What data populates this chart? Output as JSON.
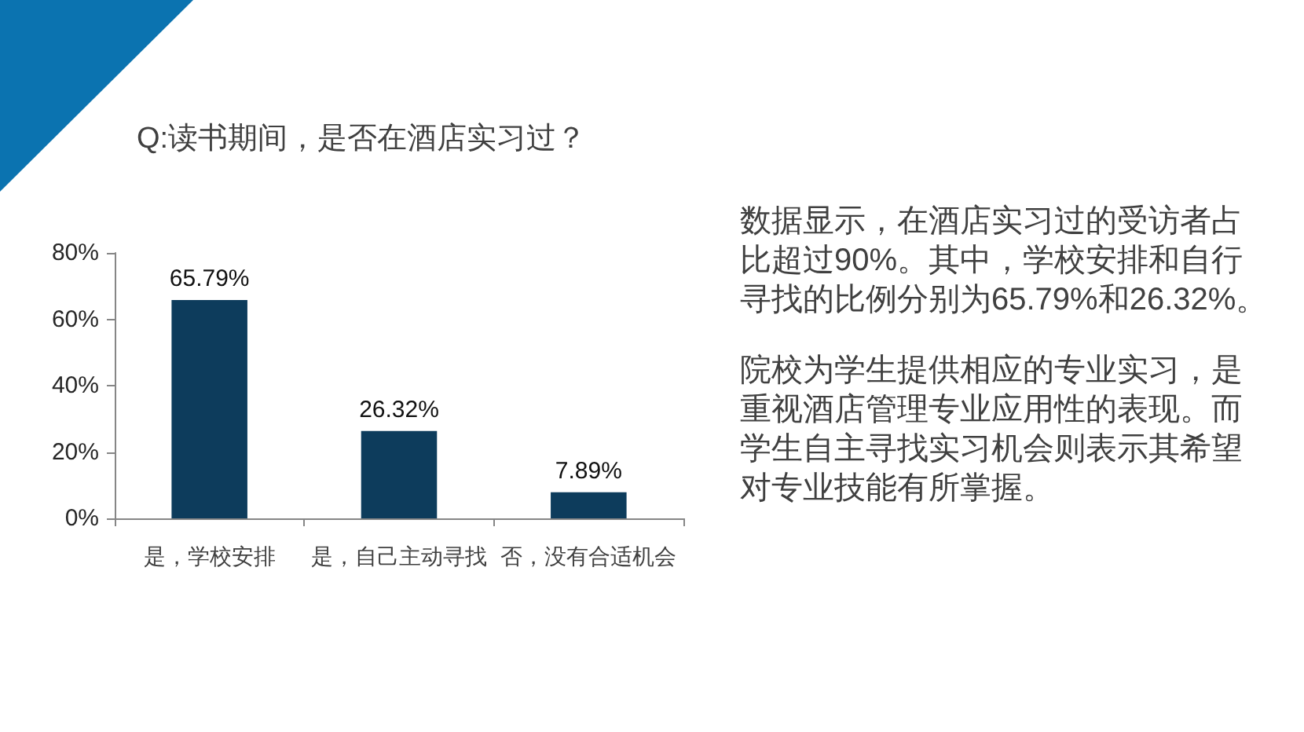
{
  "chart_data": {
    "type": "bar",
    "title": "Q:读书期间，是否在酒店实习过？",
    "categories": [
      "是，学校安排",
      "是，自己主动寻找",
      "否，没有合适机会"
    ],
    "values": [
      65.79,
      26.32,
      7.89
    ],
    "value_labels": [
      "65.79%",
      "26.32%",
      "7.89%"
    ],
    "color": "#0d3c5c",
    "ylim": [
      0,
      80
    ],
    "yticks": [
      {
        "value": 0,
        "label": "0%"
      },
      {
        "value": 20,
        "label": "20%"
      },
      {
        "value": 40,
        "label": "40%"
      },
      {
        "value": 60,
        "label": "60%"
      },
      {
        "value": 80,
        "label": "80%"
      }
    ],
    "grid": false,
    "annotations": [
      "数据显示，在酒店实习过的受访者占比超过90%。其中，学校安排和自行寻找的比例分别为65.79%和26.32%。",
      "院校为学生提供相应的专业实习，是重视酒店管理专业应用性的表现。而学生自主寻找实习机会则表示其希望对专业技能有所掌握。"
    ]
  }
}
